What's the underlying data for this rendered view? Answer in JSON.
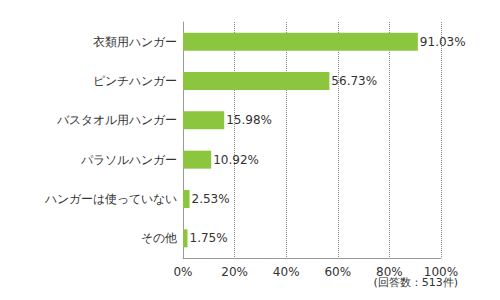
{
  "chart_data": {
    "type": "bar",
    "orientation": "horizontal",
    "categories": [
      "衣類用ハンガー",
      "ピンチハンガー",
      "バスタオル用ハンガー",
      "パラソルハンガー",
      "ハンガーは使っていない",
      "その他"
    ],
    "values": [
      91.03,
      56.73,
      15.98,
      10.92,
      2.53,
      1.75
    ],
    "value_labels": [
      "91.03%",
      "56.73%",
      "15.98%",
      "10.92%",
      "2.53%",
      "1.75%"
    ],
    "color": "#8cc63e",
    "xlim": [
      0,
      100
    ],
    "xticks": [
      {
        "value": 0,
        "label": "0%"
      },
      {
        "value": 20,
        "label": "20%"
      },
      {
        "value": 40,
        "label": "40%"
      },
      {
        "value": 60,
        "label": "60%"
      },
      {
        "value": 80,
        "label": "80%"
      },
      {
        "value": 100,
        "label": "100%"
      }
    ],
    "grid": true,
    "data_labels": true,
    "annotation": "(回答数：513件)"
  }
}
